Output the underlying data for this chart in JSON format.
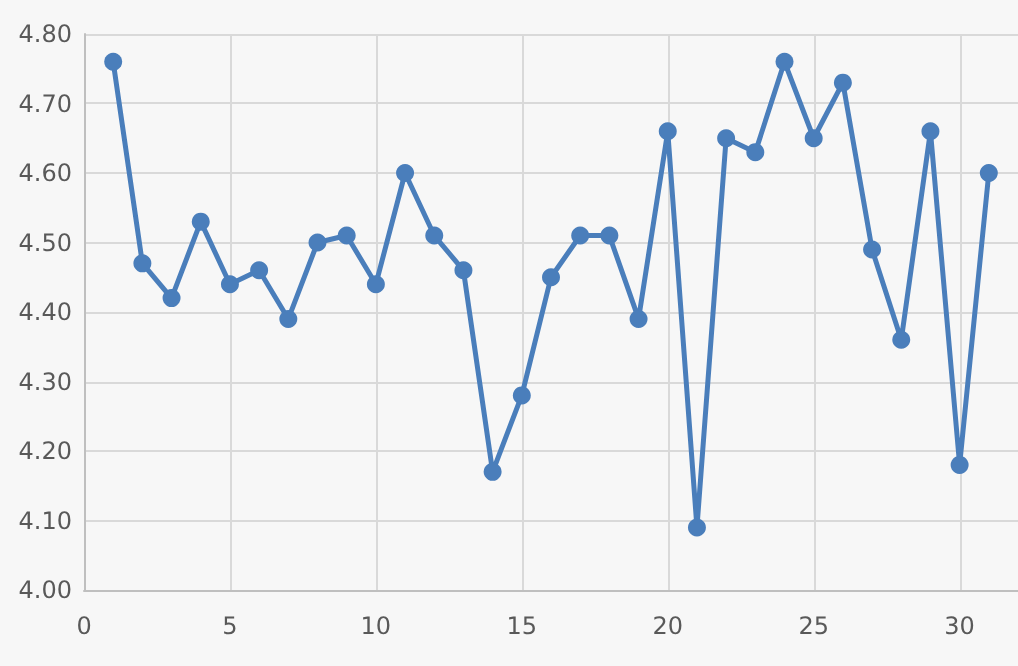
{
  "chart_data": {
    "type": "line",
    "x": [
      1,
      2,
      3,
      4,
      5,
      6,
      7,
      8,
      9,
      10,
      11,
      12,
      13,
      14,
      15,
      16,
      17,
      18,
      19,
      20,
      21,
      22,
      23,
      24,
      25,
      26,
      27,
      28,
      29,
      30,
      31
    ],
    "series": [
      {
        "color": "#4a7ebb",
        "values": [
          4.76,
          4.47,
          4.42,
          4.53,
          4.44,
          4.46,
          4.39,
          4.5,
          4.51,
          4.44,
          4.6,
          4.51,
          4.46,
          4.17,
          4.28,
          4.45,
          4.51,
          4.51,
          4.39,
          4.66,
          4.09,
          4.65,
          4.63,
          4.76,
          4.65,
          4.73,
          4.49,
          4.36,
          4.66,
          4.18,
          4.6
        ]
      }
    ],
    "xlim": [
      0,
      32
    ],
    "xticks": [
      0,
      5,
      10,
      15,
      20,
      25,
      30
    ],
    "ylim": [
      4.0,
      4.8
    ],
    "yticks": [
      {
        "value": 4.0,
        "label": "4.00"
      },
      {
        "value": 4.1,
        "label": "4.10"
      },
      {
        "value": 4.2,
        "label": "4.20"
      },
      {
        "value": 4.3,
        "label": "4.30"
      },
      {
        "value": 4.4,
        "label": "4.40"
      },
      {
        "value": 4.5,
        "label": "4.50"
      },
      {
        "value": 4.6,
        "label": "4.60"
      },
      {
        "value": 4.7,
        "label": "4.70"
      },
      {
        "value": 4.8,
        "label": "4.80"
      }
    ],
    "grid": true,
    "marker": "circle",
    "line_style": "solid"
  }
}
